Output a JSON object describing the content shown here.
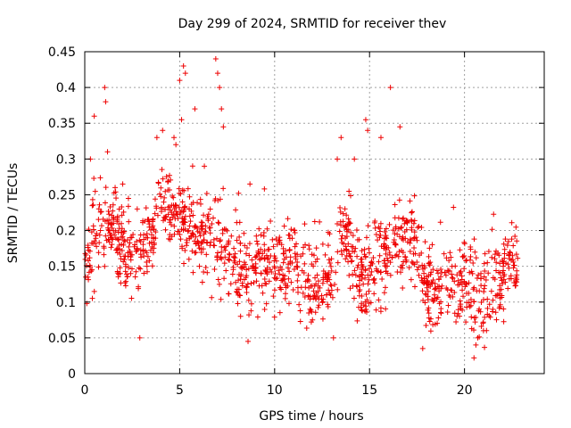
{
  "chart_data": {
    "type": "scatter",
    "title": "Day 299 of 2024, SRMTID for receiver thev",
    "xlabel": "GPS time / hours",
    "ylabel": "SRMTID / TECUs",
    "xlim": [
      0,
      24.2
    ],
    "ylim": [
      0,
      0.45
    ],
    "xticks": [
      0,
      5,
      10,
      15,
      20
    ],
    "yticks": [
      0,
      0.05,
      0.1,
      0.15,
      0.2,
      0.25,
      0.3,
      0.35,
      0.4,
      0.45
    ],
    "grid": true,
    "marker": "+",
    "color": "#ee0000",
    "series": [
      {
        "name": "SRMTID",
        "profile": [
          [
            0.0,
            0.145
          ],
          [
            0.5,
            0.19
          ],
          [
            1.0,
            0.21
          ],
          [
            1.5,
            0.2
          ],
          [
            2.0,
            0.17
          ],
          [
            2.5,
            0.165
          ],
          [
            3.0,
            0.18
          ],
          [
            3.5,
            0.2
          ],
          [
            4.0,
            0.24
          ],
          [
            4.5,
            0.23
          ],
          [
            5.0,
            0.22
          ],
          [
            5.5,
            0.2
          ],
          [
            6.0,
            0.19
          ],
          [
            6.5,
            0.18
          ],
          [
            7.0,
            0.17
          ],
          [
            7.5,
            0.16
          ],
          [
            8.0,
            0.15
          ],
          [
            8.5,
            0.14
          ],
          [
            9.0,
            0.145
          ],
          [
            9.5,
            0.14
          ],
          [
            10.0,
            0.145
          ],
          [
            10.5,
            0.15
          ],
          [
            11.0,
            0.16
          ],
          [
            11.5,
            0.13
          ],
          [
            12.0,
            0.12
          ],
          [
            12.5,
            0.125
          ],
          [
            13.0,
            0.14
          ],
          [
            13.5,
            0.2
          ],
          [
            14.0,
            0.19
          ],
          [
            14.5,
            0.12
          ],
          [
            15.0,
            0.14
          ],
          [
            15.5,
            0.15
          ],
          [
            16.0,
            0.16
          ],
          [
            16.5,
            0.18
          ],
          [
            17.0,
            0.2
          ],
          [
            17.5,
            0.17
          ],
          [
            18.0,
            0.12
          ],
          [
            18.5,
            0.11
          ],
          [
            19.0,
            0.13
          ],
          [
            19.5,
            0.12
          ],
          [
            20.0,
            0.13
          ],
          [
            20.5,
            0.11
          ],
          [
            21.0,
            0.1
          ],
          [
            21.5,
            0.12
          ],
          [
            22.0,
            0.13
          ],
          [
            22.5,
            0.15
          ],
          [
            22.8,
            0.15
          ]
        ],
        "spread": 0.05,
        "point_count": 1400,
        "peaks": [
          [
            0.3,
            0.3
          ],
          [
            0.5,
            0.36
          ],
          [
            1.05,
            0.4
          ],
          [
            1.1,
            0.38
          ],
          [
            1.2,
            0.31
          ],
          [
            1.6,
            0.26
          ],
          [
            2.0,
            0.265
          ],
          [
            2.3,
            0.245
          ],
          [
            2.9,
            0.05
          ],
          [
            3.8,
            0.33
          ],
          [
            4.1,
            0.34
          ],
          [
            4.7,
            0.33
          ],
          [
            4.8,
            0.32
          ],
          [
            5.0,
            0.41
          ],
          [
            5.2,
            0.43
          ],
          [
            5.3,
            0.42
          ],
          [
            5.1,
            0.355
          ],
          [
            5.8,
            0.37
          ],
          [
            6.3,
            0.29
          ],
          [
            6.9,
            0.44
          ],
          [
            7.0,
            0.42
          ],
          [
            7.1,
            0.4
          ],
          [
            7.2,
            0.37
          ],
          [
            7.3,
            0.345
          ],
          [
            8.6,
            0.045
          ],
          [
            8.7,
            0.265
          ],
          [
            13.1,
            0.05
          ],
          [
            13.3,
            0.3
          ],
          [
            13.5,
            0.33
          ],
          [
            14.2,
            0.3
          ],
          [
            14.8,
            0.355
          ],
          [
            14.9,
            0.34
          ],
          [
            15.6,
            0.33
          ],
          [
            16.1,
            0.4
          ],
          [
            16.6,
            0.345
          ],
          [
            17.8,
            0.035
          ],
          [
            20.5,
            0.022
          ],
          [
            20.6,
            0.04
          ],
          [
            20.7,
            0.05
          ],
          [
            21.0,
            0.06
          ]
        ]
      }
    ]
  }
}
